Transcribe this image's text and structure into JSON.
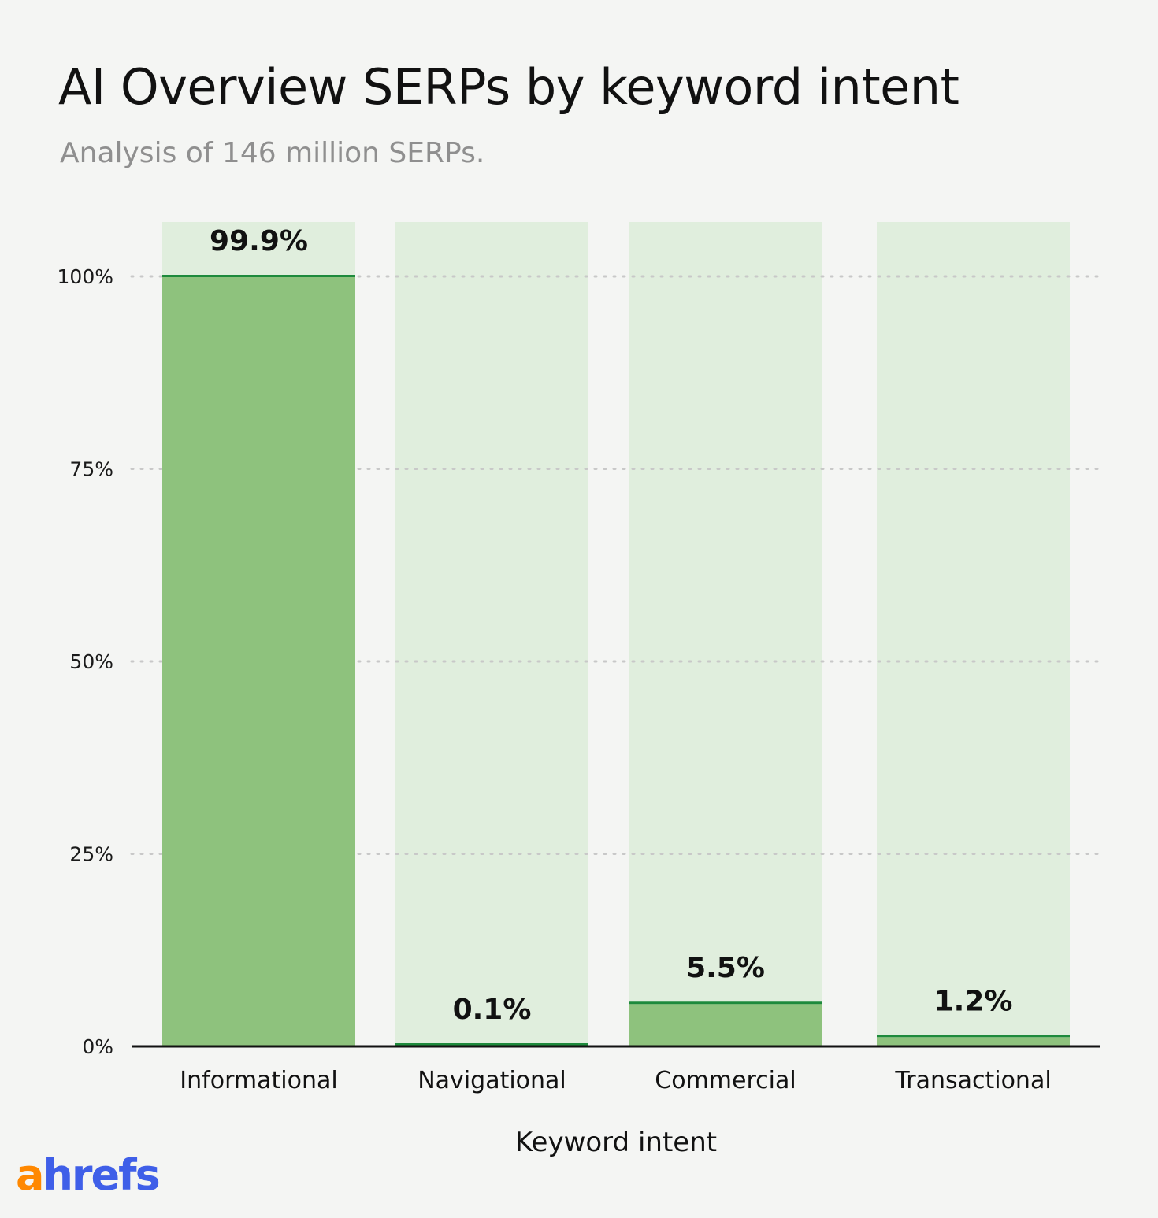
{
  "title": "AI Overview SERPs by keyword intent",
  "subtitle": "Analysis of 146 million SERPs.",
  "logo": {
    "first": "a",
    "rest": "hrefs"
  },
  "colors": {
    "bar_fill": "#8ec27d",
    "bar_top_line": "#1e8a3c",
    "track": "#e0eedd",
    "grid": "#c8c8c8",
    "axis": "#111111"
  },
  "chart_data": {
    "type": "bar",
    "title": "AI Overview SERPs by keyword intent",
    "subtitle": "Analysis of 146 million SERPs.",
    "xlabel": "Keyword intent",
    "ylabel": "",
    "categories": [
      "Informational",
      "Navigational",
      "Commercial",
      "Transactional"
    ],
    "values": [
      99.9,
      0.1,
      5.5,
      1.2
    ],
    "value_labels": [
      "99.9%",
      "0.1%",
      "5.5%",
      "1.2%"
    ],
    "yticks": [
      0,
      25,
      50,
      75,
      100
    ],
    "ytick_labels": [
      "0%",
      "25%",
      "50%",
      "75%",
      "100%"
    ],
    "ylim": [
      0,
      107
    ],
    "grid": true,
    "legend": "none"
  }
}
